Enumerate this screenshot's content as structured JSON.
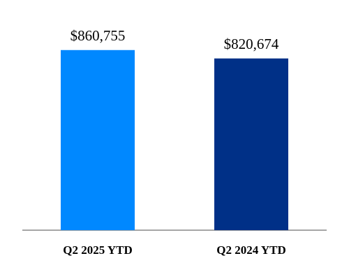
{
  "chart_data": {
    "type": "bar",
    "categories": [
      "Q2 2025 YTD",
      "Q2 2024 YTD"
    ],
    "values": [
      860755,
      820674
    ],
    "value_labels": [
      "$860,755",
      "$820,674"
    ],
    "bar_colors": [
      "#0088ff",
      "#003087"
    ],
    "title": "",
    "xlabel": "",
    "ylabel": "",
    "ylim": [
      0,
      1000000
    ],
    "grid": false,
    "legend": "none"
  },
  "colors": {
    "axis": "#a6a6a6"
  }
}
